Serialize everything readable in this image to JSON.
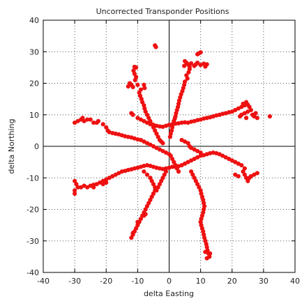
{
  "chart_data": {
    "type": "scatter",
    "title": "Uncorrected Transponder Positions",
    "xlabel": "delta Easting",
    "ylabel": "delta Northing",
    "xlim": [
      -40,
      40
    ],
    "ylim": [
      -40,
      40
    ],
    "xticks": [
      "-40",
      "-30",
      "-20",
      "-10",
      "0",
      "10",
      "20",
      "30",
      "40"
    ],
    "yticks": [
      "40",
      "30",
      "20",
      "10",
      "0",
      "-10",
      "-20",
      "-30",
      "-40"
    ],
    "grid": true,
    "zero_lines": true,
    "series": [
      {
        "color": "#ee1111",
        "points": [
          [
            -4.5,
            32
          ],
          [
            -4.2,
            31.5
          ],
          [
            9.5,
            29.5
          ],
          [
            9.0,
            29.2
          ],
          [
            10,
            29.8
          ],
          [
            5,
            27
          ],
          [
            5.5,
            26.5
          ],
          [
            6,
            26
          ],
          [
            4.8,
            25.5
          ],
          [
            6.5,
            25.2
          ],
          [
            7,
            26.3
          ],
          [
            8,
            25.5
          ],
          [
            8.5,
            26
          ],
          [
            9,
            26.5
          ],
          [
            10,
            25.8
          ],
          [
            11,
            26.2
          ],
          [
            12,
            26
          ],
          [
            11.5,
            25.3
          ],
          [
            6.5,
            24.5
          ],
          [
            6.2,
            23.5
          ],
          [
            5.5,
            22.5
          ],
          [
            5.8,
            21.5
          ],
          [
            5,
            20.5
          ],
          [
            4.8,
            19.5
          ],
          [
            4.5,
            18.5
          ],
          [
            4.2,
            17.5
          ],
          [
            3.8,
            16.5
          ],
          [
            3.5,
            15.5
          ],
          [
            3.2,
            14.5
          ],
          [
            3,
            13.5
          ],
          [
            2.8,
            12.5
          ],
          [
            2.5,
            11.5
          ],
          [
            2.2,
            10.5
          ],
          [
            2,
            9.5
          ],
          [
            1.8,
            8.8
          ],
          [
            1.5,
            8
          ],
          [
            1.2,
            7
          ],
          [
            1,
            6
          ],
          [
            0.8,
            5
          ],
          [
            0.5,
            4
          ],
          [
            0.3,
            3
          ],
          [
            -11,
            25.2
          ],
          [
            -10.5,
            25
          ],
          [
            -11.3,
            24
          ],
          [
            -11,
            23
          ],
          [
            -10.5,
            22
          ],
          [
            -10.8,
            21
          ],
          [
            -12.5,
            20
          ],
          [
            -12,
            19.5
          ],
          [
            -13,
            19
          ],
          [
            -11.5,
            18.8
          ],
          [
            -10,
            19.5
          ],
          [
            -8,
            19.5
          ],
          [
            -7.8,
            18.5
          ],
          [
            -9,
            18
          ],
          [
            -9.5,
            17
          ],
          [
            -9.2,
            16
          ],
          [
            -8.8,
            15
          ],
          [
            -8.5,
            14
          ],
          [
            -8,
            13
          ],
          [
            -7.8,
            12
          ],
          [
            -7.5,
            11
          ],
          [
            -7,
            10
          ],
          [
            -6.5,
            9
          ],
          [
            -6,
            8
          ],
          [
            -5.5,
            7
          ],
          [
            -5,
            6
          ],
          [
            -4.5,
            5
          ],
          [
            -4,
            4
          ],
          [
            -3.5,
            3
          ],
          [
            -3,
            2
          ],
          [
            -2.5,
            1.5
          ],
          [
            -2,
            1
          ],
          [
            -12,
            10.5
          ],
          [
            -11.5,
            10
          ],
          [
            -10,
            9
          ],
          [
            -9,
            8.5
          ],
          [
            -8,
            8
          ],
          [
            -7,
            7.5
          ],
          [
            -6,
            7
          ],
          [
            -5,
            6.8
          ],
          [
            -4,
            6.5
          ],
          [
            -3,
            6.3
          ],
          [
            -2,
            6.2
          ],
          [
            -1,
            6.5
          ],
          [
            0,
            6.8
          ],
          [
            1,
            7
          ],
          [
            2,
            7.2
          ],
          [
            3,
            7.3
          ],
          [
            4,
            7.5
          ],
          [
            5,
            7.6
          ],
          [
            6,
            7.5
          ],
          [
            7,
            7.8
          ],
          [
            8,
            8
          ],
          [
            9,
            8.3
          ],
          [
            10,
            8.5
          ],
          [
            11,
            8.8
          ],
          [
            12,
            9
          ],
          [
            13,
            9.2
          ],
          [
            14,
            9.5
          ],
          [
            15,
            9.8
          ],
          [
            16,
            10
          ],
          [
            17,
            10.3
          ],
          [
            18,
            10.5
          ],
          [
            19,
            10.8
          ],
          [
            20,
            11
          ],
          [
            21,
            11.5
          ],
          [
            22,
            12
          ],
          [
            23,
            12.5
          ],
          [
            24,
            13
          ],
          [
            24.5,
            14
          ],
          [
            23.5,
            13.5
          ],
          [
            25,
            13.2
          ],
          [
            25.5,
            12.5
          ],
          [
            26,
            11.5
          ],
          [
            25,
            11
          ],
          [
            24,
            10.5
          ],
          [
            23,
            10
          ],
          [
            22.5,
            9.5
          ],
          [
            24.5,
            9
          ],
          [
            26.5,
            10
          ],
          [
            27,
            9.5
          ],
          [
            27.5,
            10.5
          ],
          [
            28,
            9
          ],
          [
            32,
            9.5
          ],
          [
            -30,
            7.5
          ],
          [
            -29,
            8
          ],
          [
            -28,
            8.5
          ],
          [
            -27.5,
            9
          ],
          [
            -27,
            8
          ],
          [
            -26,
            8.5
          ],
          [
            -25,
            8.5
          ],
          [
            -24,
            7.5
          ],
          [
            -23,
            7.5
          ],
          [
            -22.5,
            8
          ],
          [
            -21,
            7
          ],
          [
            -20,
            6
          ],
          [
            -19.5,
            5
          ],
          [
            -19,
            4.5
          ],
          [
            -18,
            4.2
          ],
          [
            -17,
            4
          ],
          [
            -16,
            3.8
          ],
          [
            -15,
            3.5
          ],
          [
            -14,
            3.2
          ],
          [
            -13,
            3
          ],
          [
            -12,
            2.8
          ],
          [
            -11,
            2.5
          ],
          [
            -10,
            2.2
          ],
          [
            -9,
            2
          ],
          [
            -8,
            1.5
          ],
          [
            -7,
            1
          ],
          [
            -6,
            0.5
          ],
          [
            -5,
            0
          ],
          [
            -4,
            -0.5
          ],
          [
            -3,
            -1
          ],
          [
            -2,
            -1.5
          ],
          [
            -1,
            -2
          ],
          [
            0,
            -2.5
          ],
          [
            -30,
            -11
          ],
          [
            -29.5,
            -12
          ],
          [
            -29,
            -13
          ],
          [
            -30,
            -14
          ],
          [
            -30,
            -15
          ],
          [
            -28,
            -13
          ],
          [
            -27,
            -12.5
          ],
          [
            -26,
            -13
          ],
          [
            -25,
            -12.5
          ],
          [
            -24,
            -12.2
          ],
          [
            -23,
            -12
          ],
          [
            -22,
            -11.5
          ],
          [
            -21,
            -11
          ],
          [
            -20,
            -10.5
          ],
          [
            -19,
            -10
          ],
          [
            -18,
            -9.5
          ],
          [
            -17,
            -9
          ],
          [
            -16,
            -8.5
          ],
          [
            -15,
            -8
          ],
          [
            -14,
            -7.8
          ],
          [
            -13,
            -7.5
          ],
          [
            -12,
            -7.3
          ],
          [
            -11,
            -7
          ],
          [
            -10,
            -6.8
          ],
          [
            -9,
            -6.5
          ],
          [
            -8,
            -6.2
          ],
          [
            -7,
            -6
          ],
          [
            -6,
            -6.2
          ],
          [
            -5,
            -6.5
          ],
          [
            -4,
            -6.8
          ],
          [
            -3,
            -7
          ],
          [
            -2,
            -7.2
          ],
          [
            -1,
            -7
          ],
          [
            0,
            -6.8
          ],
          [
            1,
            -6.5
          ],
          [
            2,
            -6.5
          ],
          [
            3,
            -6.3
          ],
          [
            4,
            -6
          ],
          [
            5,
            -5.5
          ],
          [
            6,
            -5
          ],
          [
            7,
            -4.5
          ],
          [
            8,
            -4
          ],
          [
            9,
            -3.5
          ],
          [
            10,
            -3
          ],
          [
            11,
            -2.8
          ],
          [
            12,
            -2.5
          ],
          [
            13,
            -2.2
          ],
          [
            14,
            -2
          ],
          [
            15,
            -2.2
          ],
          [
            16,
            -2.5
          ],
          [
            17,
            -3
          ],
          [
            18,
            -3.5
          ],
          [
            19,
            -4
          ],
          [
            20,
            -4.5
          ],
          [
            21,
            -5
          ],
          [
            22,
            -5.5
          ],
          [
            23,
            -6
          ],
          [
            24,
            -7
          ],
          [
            23.5,
            -8
          ],
          [
            24,
            -9
          ],
          [
            24.5,
            -10
          ],
          [
            25,
            -11
          ],
          [
            25.5,
            -10
          ],
          [
            26,
            -9.5
          ],
          [
            27,
            -9
          ],
          [
            28,
            -8.5
          ],
          [
            21,
            -9
          ],
          [
            22,
            -9.5
          ],
          [
            -20,
            -11.5
          ],
          [
            -21,
            -12
          ],
          [
            -24,
            -13
          ],
          [
            4,
            2
          ],
          [
            5,
            1.5
          ],
          [
            6,
            1
          ],
          [
            6.5,
            0
          ],
          [
            7,
            -0.5
          ],
          [
            8,
            -1
          ],
          [
            9,
            -1.5
          ],
          [
            10,
            -2
          ],
          [
            -8,
            -8
          ],
          [
            -7,
            -9
          ],
          [
            -6,
            -10
          ],
          [
            -5.5,
            -11
          ],
          [
            -5,
            -12
          ],
          [
            -4.5,
            -13
          ],
          [
            -4.5,
            -14
          ],
          [
            -5,
            -15
          ],
          [
            -5.5,
            -16
          ],
          [
            -6,
            -17
          ],
          [
            -6.5,
            -18
          ],
          [
            -7,
            -19
          ],
          [
            -7.5,
            -20
          ],
          [
            -8,
            -21
          ],
          [
            -8.5,
            -22
          ],
          [
            -9,
            -23
          ],
          [
            -9.5,
            -24
          ],
          [
            -10,
            -25
          ],
          [
            -10.5,
            -26
          ],
          [
            -11,
            -27
          ],
          [
            -11.5,
            -28
          ],
          [
            -12,
            -29
          ],
          [
            -11.5,
            -27.5
          ],
          [
            -10,
            -24
          ],
          [
            -8,
            -22
          ],
          [
            -7.5,
            -21.5
          ],
          [
            -1,
            -8
          ],
          [
            -1.5,
            -9
          ],
          [
            -2,
            -10
          ],
          [
            -2.5,
            -11
          ],
          [
            -3,
            -12
          ],
          [
            -3.5,
            -13
          ],
          [
            -4,
            -14
          ],
          [
            7,
            -8
          ],
          [
            7.5,
            -9
          ],
          [
            8,
            -10
          ],
          [
            8.5,
            -11
          ],
          [
            9,
            -12
          ],
          [
            9.5,
            -13
          ],
          [
            10,
            -14
          ],
          [
            10.2,
            -15
          ],
          [
            10.5,
            -16
          ],
          [
            10.8,
            -17
          ],
          [
            11,
            -18
          ],
          [
            11.2,
            -19
          ],
          [
            11,
            -20
          ],
          [
            10.8,
            -21
          ],
          [
            10.5,
            -22
          ],
          [
            10.2,
            -23
          ],
          [
            10,
            -24
          ],
          [
            10.2,
            -25
          ],
          [
            10.5,
            -26
          ],
          [
            10.8,
            -27
          ],
          [
            11,
            -28
          ],
          [
            11.2,
            -29
          ],
          [
            11.5,
            -30
          ],
          [
            11.8,
            -31
          ],
          [
            12,
            -32
          ],
          [
            12.2,
            -33
          ],
          [
            12.5,
            -34
          ],
          [
            12.8,
            -35
          ],
          [
            11.5,
            -33.5
          ],
          [
            13,
            -34
          ],
          [
            12,
            -35.5
          ],
          [
            0.5,
            -3
          ],
          [
            1,
            -4
          ],
          [
            1.5,
            -5
          ],
          [
            2,
            -6
          ],
          [
            2.5,
            -7
          ],
          [
            3,
            -8
          ]
        ]
      }
    ]
  }
}
